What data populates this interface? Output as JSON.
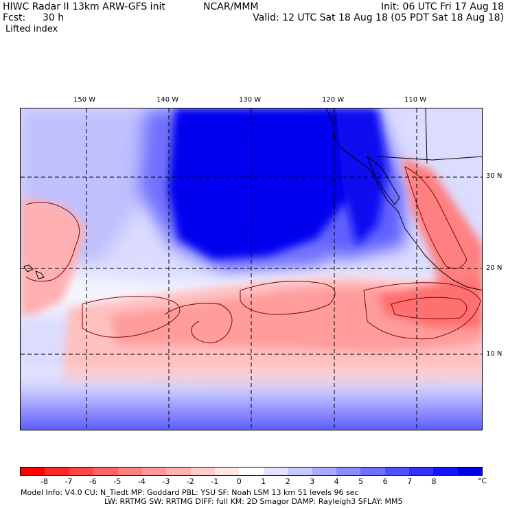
{
  "header": {
    "title": "HIWC Radar II 13km ARW-GFS init",
    "center": "NCAR/MMM",
    "init": "Init: 06 UTC Fri 17 Aug 18",
    "fcst_label": "Fcst:",
    "fcst_value": "30 h",
    "valid": "Valid: 12 UTC Sat 18 Aug 18 (05 PDT Sat 18 Aug 18)",
    "field": "Lifted index"
  },
  "map": {
    "longitude_labels": [
      "150 W",
      "140 W",
      "130 W",
      "120 W",
      "110 W"
    ],
    "latitude_labels": [
      "30 N",
      "20 N",
      "10 N"
    ],
    "colors": {
      "deep_blue": "#0000ee",
      "blue": "#3a3aff",
      "mid_blue": "#8080ff",
      "light_blue": "#c8c8ff",
      "white": "#ffffff",
      "light_red": "#ffc8c8",
      "pink": "#ff9a9a",
      "red": "#ff5a5a",
      "contour": "#8b0000"
    }
  },
  "colorbar": {
    "ticks": [
      "-8",
      "-7",
      "-6",
      "-5",
      "-4",
      "-3",
      "-2",
      "-1",
      "0",
      "1",
      "2",
      "3",
      "4",
      "5",
      "6",
      "7",
      "8"
    ],
    "unit": "°C",
    "colors": [
      "#ff0000",
      "#ff2828",
      "#ff4646",
      "#ff6464",
      "#ff7e7e",
      "#ff9898",
      "#ffb2b2",
      "#ffcccc",
      "#ffe6e6",
      "#ffffff",
      "#e4e4ff",
      "#c8c8ff",
      "#aaaaff",
      "#8c8cff",
      "#6e6eff",
      "#5050ff",
      "#3232ff",
      "#1414ff",
      "#0000e6"
    ]
  },
  "footer": {
    "line1": "Model Info: V4.0    CU: N_Tiedt  MP: Goddard    PBL: YSU     SF: Noah LSM     13 km   51 levels   96 sec",
    "line2": "LW: RRTMG    SW: RRTMG   DIFF: full    KM: 2D Smagor  DAMP: Rayleigh3  SFLAY: MM5"
  }
}
